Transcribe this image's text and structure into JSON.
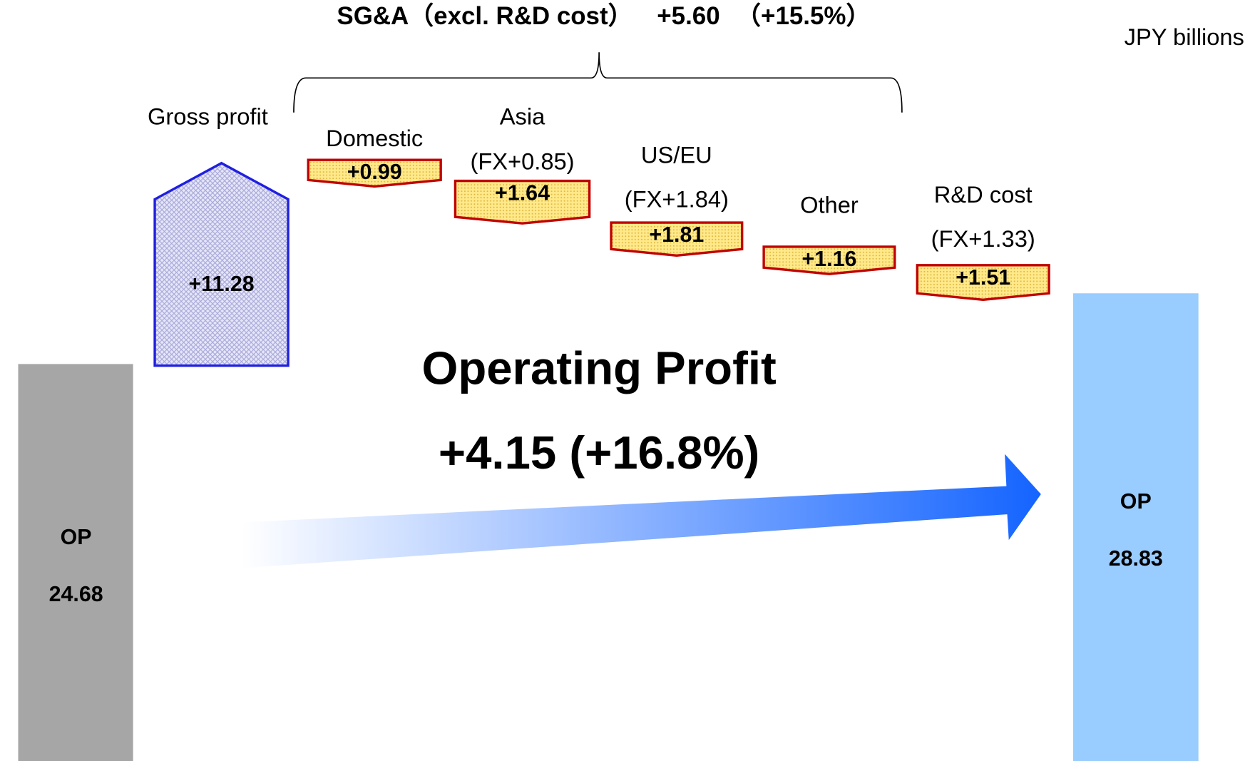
{
  "unit": "JPY billions",
  "sga": {
    "label": "SG&A（excl. R&D cost）",
    "total": "+5.60",
    "pct": "（+15.5%）"
  },
  "start": {
    "label": "OP",
    "value": "24.68"
  },
  "gross_profit": {
    "label": "Gross profit",
    "value": "+11.28"
  },
  "items": [
    {
      "label": "Domestic",
      "value": "+0.99"
    },
    {
      "label": "Asia",
      "fx": "(FX+0.85)",
      "value": "+1.64"
    },
    {
      "label": "US/EU",
      "fx": "(FX+1.84)",
      "value": "+1.81"
    },
    {
      "label": "Other",
      "value": "+1.16"
    },
    {
      "label": "R&D cost",
      "fx": "(FX+1.33)",
      "value": "+1.51"
    }
  ],
  "center": {
    "title": "Operating Profit",
    "change": "+4.15 (+16.8%)"
  },
  "end": {
    "label": "OP",
    "value": "28.83"
  }
}
